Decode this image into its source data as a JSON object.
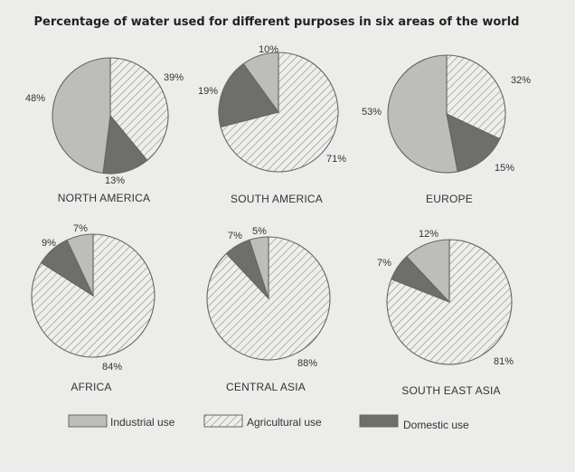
{
  "chart_data": {
    "type": "pie",
    "title": "Percentage of water used for different purposes in six areas of the world",
    "legend": {
      "placement": "bottom",
      "entries": [
        {
          "key": "industrial",
          "label": "Industrial use"
        },
        {
          "key": "agricultural",
          "label": "Agricultural use"
        },
        {
          "key": "domestic",
          "label": "Domestic use"
        }
      ]
    },
    "colors": {
      "industrial": "#bdbdba",
      "agricultural_bg": "#eeeeec",
      "agricultural_hatch": "#8f8f8c",
      "domestic": "#6e6e6b",
      "edge": "#666666"
    },
    "pies": [
      {
        "region": "NORTH AMERICA",
        "values": {
          "agricultural": 39,
          "domestic": 13,
          "industrial": 48
        },
        "labels": {
          "agricultural": "39%",
          "domestic": "13%",
          "industrial": "48%"
        }
      },
      {
        "region": "SOUTH AMERICA",
        "values": {
          "agricultural": 71,
          "domestic": 19,
          "industrial": 10
        },
        "labels": {
          "agricultural": "71%",
          "domestic": "19%",
          "industrial": "10%"
        }
      },
      {
        "region": "EUROPE",
        "values": {
          "agricultural": 32,
          "domestic": 15,
          "industrial": 53
        },
        "labels": {
          "agricultural": "32%",
          "domestic": "15%",
          "industrial": "53%"
        }
      },
      {
        "region": "AFRICA",
        "values": {
          "agricultural": 84,
          "domestic": 9,
          "industrial": 7
        },
        "labels": {
          "agricultural": "84%",
          "domestic": "9%",
          "industrial": "7%"
        }
      },
      {
        "region": "CENTRAL ASIA",
        "values": {
          "agricultural": 88,
          "domestic": 7,
          "industrial": 5
        },
        "labels": {
          "agricultural": "88%",
          "domestic": "7%",
          "industrial": "5%"
        }
      },
      {
        "region": "SOUTH EAST ASIA",
        "values": {
          "agricultural": 81,
          "domestic": 7,
          "industrial": 12
        },
        "labels": {
          "agricultural": "81%",
          "domestic": "7%",
          "industrial": "12%"
        }
      }
    ]
  }
}
